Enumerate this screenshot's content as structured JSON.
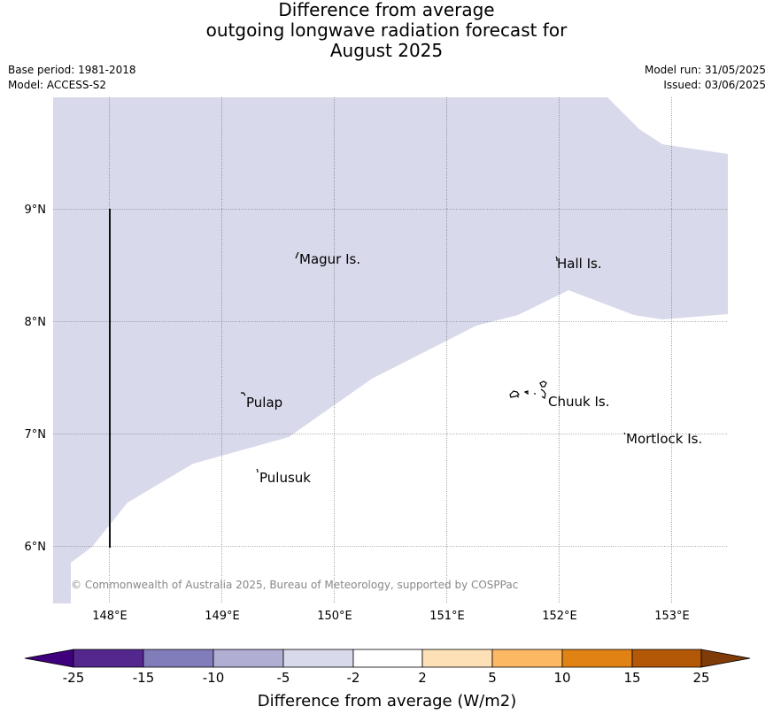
{
  "title_lines": [
    "Difference from average",
    "outgoing longwave radiation forecast for",
    "August 2025"
  ],
  "meta_left": [
    "Base period: 1981-2018",
    "Model: ACCESS-S2"
  ],
  "meta_right": [
    "Model run: 31/05/2025",
    "Issued: 03/06/2025"
  ],
  "map": {
    "lon_ticks": [
      "148°E",
      "149°E",
      "150°E",
      "151°E",
      "152°E",
      "153°E"
    ],
    "lat_ticks": [
      "9°N",
      "8°N",
      "7°N",
      "6°N"
    ],
    "places": [
      "Magur Is.",
      "Hall Is.",
      "Pulap",
      "Chuuk Is.",
      "Mortlock Is.",
      "Pulusuk"
    ],
    "copyright": "© Commonwealth of Australia 2025, Bureau of Meteorology, supported by COSPPac",
    "shaded_category": "-5 to -2",
    "shaded_color": "#d8d9ea",
    "grid": true
  },
  "colorbar": {
    "tick_labels": [
      "-25",
      "-15",
      "-10",
      "-5",
      "-2",
      "2",
      "5",
      "10",
      "15",
      "25"
    ],
    "colors": [
      "#3f007d",
      "#54278f",
      "#807dba",
      "#b1aed4",
      "#d8d9ea",
      "#ffffff",
      "#fee0b6",
      "#fdb863",
      "#e08214",
      "#b35806",
      "#7f3b08"
    ],
    "label": "Difference from average (W/m2)"
  }
}
